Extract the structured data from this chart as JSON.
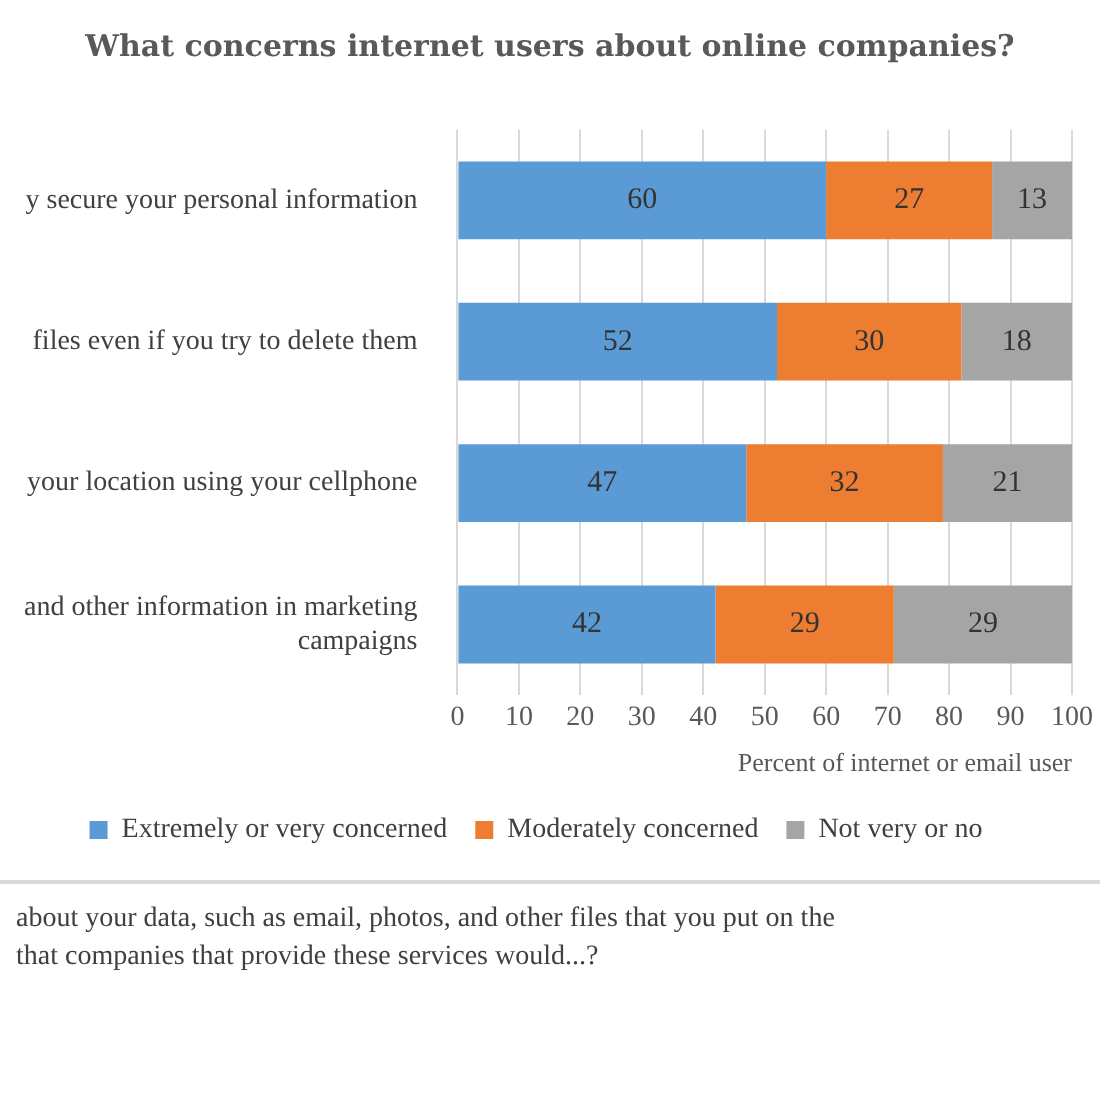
{
  "chart_data": {
    "type": "bar",
    "orientation": "horizontal",
    "stacked": true,
    "title": "What concerns internet users about online companies?",
    "categories": [
      "y secure your personal information",
      "files even if you try to delete them",
      "your location using your cellphone",
      "and other information in marketing campaigns"
    ],
    "series": [
      {
        "name": "Extremely or very concerned",
        "color": "#5b9bd5",
        "values": [
          60,
          52,
          47,
          42
        ]
      },
      {
        "name": "Moderately concerned",
        "color": "#ed7d31",
        "values": [
          27,
          30,
          32,
          29
        ]
      },
      {
        "name": "Not very or no",
        "color": "#a5a5a5",
        "values": [
          13,
          18,
          21,
          29
        ]
      }
    ],
    "xlim": [
      0,
      100
    ],
    "xticks": [
      0,
      10,
      20,
      30,
      40,
      50,
      60,
      70,
      80,
      90,
      100
    ],
    "xlabel": "Percent of internet or email user",
    "grid": "x",
    "legend": "bottom",
    "data_labels": true,
    "annotations": [
      "about your data, such as email, photos, and other files that you put on the",
      "that companies that provide these services would...?"
    ]
  }
}
